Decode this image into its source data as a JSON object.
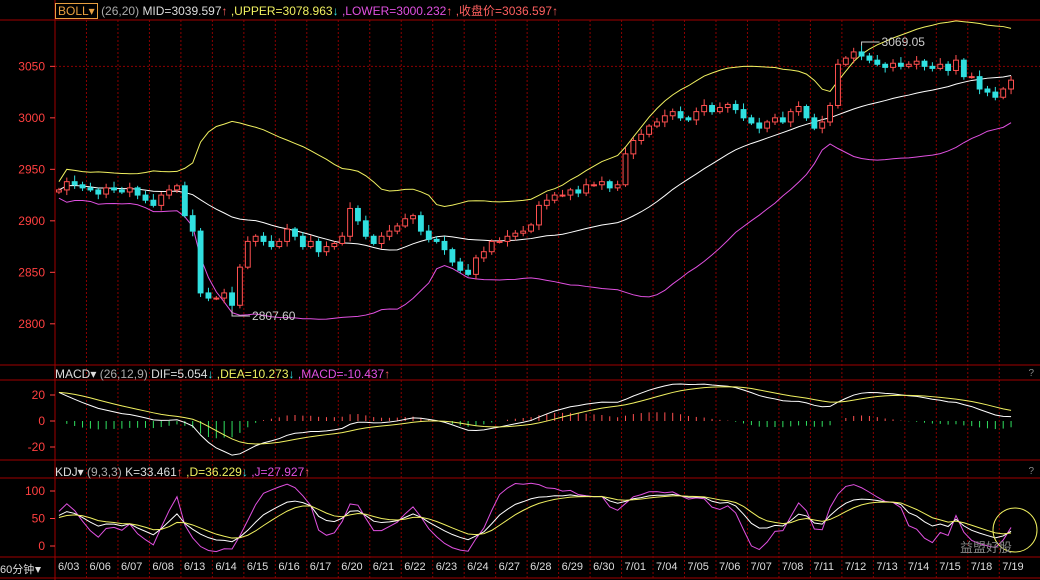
{
  "boll": {
    "label": "BOLL▾",
    "params": "(26,20)",
    "mid": "MID=3039.597",
    "upper": ",UPPER=3078.963",
    "lower": ",LOWER=3000.232",
    "close": ",收盘价=3036.597",
    "up": "↑",
    "down": "↓"
  },
  "macd": {
    "label": "MACD▾",
    "params": "(26,12,9)",
    "dif": "DIF=5.054",
    "dea": ",DEA=10.273",
    "macd": ",MACD=-10.437"
  },
  "kdj": {
    "label": "KDJ▾",
    "params": "(9,3,3)",
    "k": "K=33.461",
    "d": ",D=36.229",
    "j": ",J=27.927"
  },
  "help": "?",
  "period": "60分钟",
  "period_icon": "arrow-down-icon",
  "watermark": "益盟好股",
  "colors": {
    "up": "#ff5050",
    "down": "#30e0e0",
    "mid": "#ffffff",
    "upper": "#f0f060",
    "lower": "#e050e0",
    "grid": "#8b0000",
    "axis": "#ff4040"
  },
  "chart_data": {
    "type": "candlestick",
    "price_ticks": [
      2800,
      2850,
      2900,
      2950,
      3000,
      3050
    ],
    "price_range": [
      2760,
      3095
    ],
    "macd_ticks": [
      20,
      0,
      -20
    ],
    "macd_range": [
      -30,
      30
    ],
    "kdj_ticks": [
      100,
      50,
      0
    ],
    "kdj_range": [
      -20,
      120
    ],
    "annotations": {
      "high": "3069.05",
      "low": "2807.60"
    },
    "dates": [
      "6/03",
      "6/06",
      "6/07",
      "6/08",
      "6/13",
      "6/14",
      "6/15",
      "6/16",
      "6/17",
      "6/20",
      "6/21",
      "6/22",
      "6/23",
      "6/24",
      "6/27",
      "6/28",
      "6/29",
      "6/30",
      "7/01",
      "7/04",
      "7/05",
      "7/06",
      "7/07",
      "7/08",
      "7/11",
      "7/12",
      "7/13",
      "7/14",
      "7/15",
      "7/18",
      "7/19"
    ],
    "closes": [
      [
        2930,
        2938,
        2935,
        2932
      ],
      [
        2930,
        2926,
        2932,
        2930
      ],
      [
        2928,
        2932,
        2925,
        2920
      ],
      [
        2915,
        2925,
        2930,
        2934
      ],
      [
        2905,
        2890,
        2830,
        2825
      ],
      [
        2825,
        2830,
        2818,
        2855
      ],
      [
        2880,
        2885,
        2880,
        2875
      ],
      [
        2880,
        2892,
        2885,
        2875
      ],
      [
        2880,
        2870,
        2875,
        2878
      ],
      [
        2885,
        2912,
        2900,
        2885
      ],
      [
        2878,
        2885,
        2890,
        2895
      ],
      [
        2902,
        2905,
        2890,
        2882
      ],
      [
        2880,
        2872,
        2860,
        2852
      ],
      [
        2848,
        2864,
        2870,
        2880
      ],
      [
        2880,
        2885,
        2888,
        2890
      ],
      [
        2896,
        2915,
        2920,
        2925
      ],
      [
        2925,
        2930,
        2927,
        2935
      ],
      [
        2935,
        2938,
        2932,
        2935
      ],
      [
        2965,
        2978,
        2984,
        2992
      ],
      [
        2996,
        3002,
        3006,
        3000
      ],
      [
        2998,
        3006,
        3012,
        3006
      ],
      [
        3010,
        3013,
        3008,
        3000
      ],
      [
        2995,
        2990,
        2996,
        3000
      ],
      [
        2996,
        3006,
        3011,
        3000
      ],
      [
        2990,
        2996,
        3012,
        3052
      ],
      [
        3058,
        3064,
        3060,
        3056
      ],
      [
        3052,
        3049,
        3053,
        3050
      ],
      [
        3052,
        3055,
        3050,
        3048
      ],
      [
        3052,
        3046,
        3056,
        3040
      ],
      [
        3040,
        3028,
        3025,
        3020
      ],
      [
        3028,
        3036.597
      ]
    ]
  }
}
